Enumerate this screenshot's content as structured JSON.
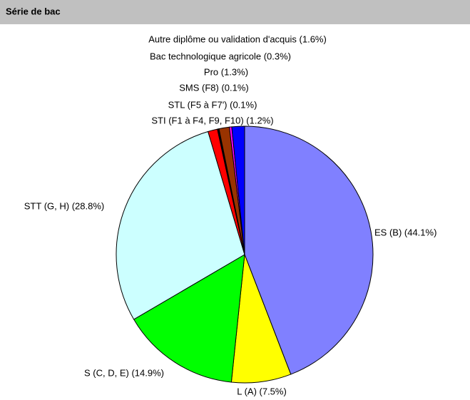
{
  "chart_data": {
    "type": "pie",
    "title": "Série de bac",
    "values": [
      44.1,
      7.5,
      14.9,
      28.8,
      1.2,
      0.1,
      0.1,
      1.3,
      0.3,
      1.6
    ],
    "value_labels": [
      "ES (B) (44.1%)",
      "L (A) (7.5%)",
      "S (C, D, E) (14.9%)",
      "STT (G, H) (28.8%)",
      "STI (F1 à F4, F9, F10) (1.2%)",
      "STL (F5 à F7') (0.1%)",
      "SMS (F8) (0.1%)",
      "Pro (1.3%)",
      "Bac technologique agricole (0.3%)",
      "Autre diplôme ou validation d'acquis (1.6%)"
    ],
    "colors": [
      "#8080ff",
      "#ffff00",
      "#00ff00",
      "#ccffff",
      "#ff0000",
      "#800000",
      "#000080",
      "#993300",
      "#ff00ff",
      "#0000ff"
    ]
  }
}
